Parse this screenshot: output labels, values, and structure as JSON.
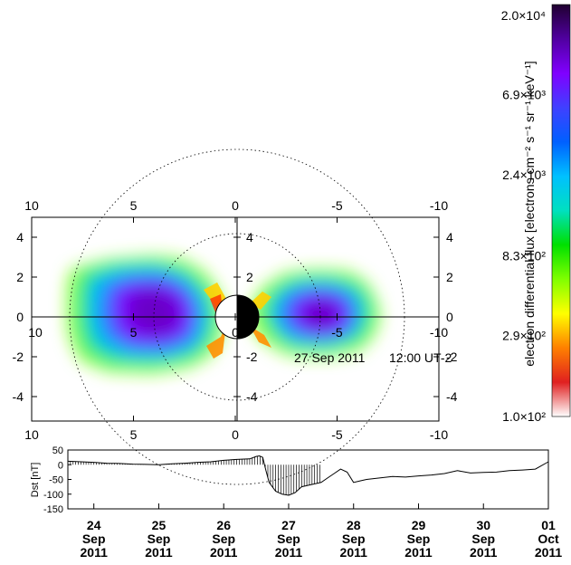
{
  "chart_data": [
    {
      "type": "heatmap",
      "title": "",
      "xlim": [
        10,
        -10
      ],
      "ylim": [
        -5,
        5
      ],
      "x_ticks": [
        "10",
        "5",
        "0",
        "-5",
        "-10"
      ],
      "y_ticks": [
        "4",
        "2",
        "0",
        "-2",
        "-4"
      ],
      "inner_x_ticks": [
        "10",
        "5",
        "0",
        "-5",
        "-10"
      ],
      "inner_y_ticks": [
        "4",
        "2",
        "0",
        "-2",
        "-4"
      ],
      "date_label": "27 Sep 2011",
      "time_label": "12:00 UT-2",
      "grid_circles": [
        4,
        8
      ],
      "colorbar": {
        "label": "electron differential flux [electrons cm⁻² s⁻¹ sr⁻¹ keV⁻¹]",
        "scale": "log",
        "range": [
          100,
          20000
        ],
        "ticks": [
          {
            "label": "2.0×10⁴",
            "value": 20000
          },
          {
            "label": "6.9×10³",
            "value": 6900
          },
          {
            "label": "2.4×10³",
            "value": 2400
          },
          {
            "label": "8.3×10²",
            "value": 830
          },
          {
            "label": "2.9×10²",
            "value": 290
          },
          {
            "label": "1.0×10²",
            "value": 100
          }
        ],
        "colors": [
          "#ffffff",
          "#e02020",
          "#ff8000",
          "#ffff00",
          "#80ff00",
          "#00e000",
          "#00e0c0",
          "#00c0ff",
          "#0060ff",
          "#4040ff",
          "#8000ff",
          "#5000a0",
          "#200030"
        ]
      }
    },
    {
      "type": "line",
      "ylabel": "Dst [nT]",
      "ylim": [
        -150,
        50
      ],
      "y_ticks": [
        "50",
        "0",
        "-50",
        "-100",
        "-150"
      ],
      "x_ticks": [
        {
          "day": "24",
          "month": "Sep",
          "year": "2011",
          "x": 24
        },
        {
          "day": "25",
          "month": "Sep",
          "year": "2011",
          "x": 25
        },
        {
          "day": "26",
          "month": "Sep",
          "year": "2011",
          "x": 26
        },
        {
          "day": "27",
          "month": "Sep",
          "year": "2011",
          "x": 27
        },
        {
          "day": "28",
          "month": "Sep",
          "year": "2011",
          "x": 28
        },
        {
          "day": "29",
          "month": "Sep",
          "year": "2011",
          "x": 29
        },
        {
          "day": "30",
          "month": "Sep",
          "year": "2011",
          "x": 30
        },
        {
          "day": "01",
          "month": "Oct",
          "year": "2011",
          "x": 31
        }
      ],
      "xlim": [
        23.6,
        31.0
      ],
      "shaded_until": 27.5,
      "series": [
        {
          "x": [
            23.6,
            23.8,
            24.0,
            24.2,
            24.4,
            24.6,
            24.8,
            25.0,
            25.2,
            25.4,
            25.6,
            25.8,
            26.0,
            26.2,
            26.4,
            26.5,
            26.55,
            26.6,
            26.65,
            26.7,
            26.8,
            26.9,
            27.0,
            27.1,
            27.2,
            27.3,
            27.4,
            27.5,
            27.6,
            27.7,
            27.8,
            27.9,
            28.0,
            28.1,
            28.2,
            28.4,
            28.6,
            28.8,
            29.0,
            29.2,
            29.4,
            29.6,
            29.8,
            30.0,
            30.2,
            30.4,
            30.6,
            30.8,
            31.0
          ],
          "y": [
            12,
            10,
            8,
            5,
            4,
            2,
            1,
            0,
            3,
            5,
            8,
            10,
            15,
            18,
            20,
            28,
            30,
            25,
            -20,
            -60,
            -90,
            -100,
            -104,
            -95,
            -75,
            -70,
            -65,
            -60,
            -45,
            -30,
            -15,
            -25,
            -60,
            -55,
            -50,
            -45,
            -40,
            -42,
            -38,
            -35,
            -30,
            -20,
            -28,
            -26,
            -25,
            -20,
            -18,
            -15,
            10
          ]
        }
      ]
    }
  ]
}
